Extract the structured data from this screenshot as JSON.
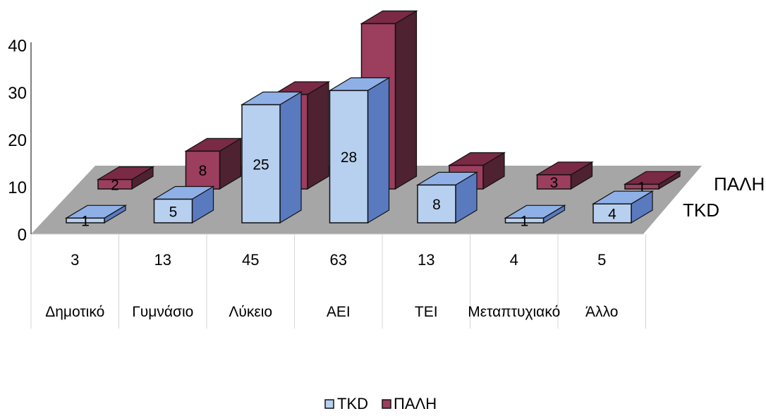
{
  "chart_data": {
    "type": "bar",
    "categories": [
      "Δημοτικό",
      "Γυμνάσιο",
      "Λύκειο",
      "ΑΕΙ",
      "ΤΕΙ",
      "Μεταπτυχιακό",
      "Άλλο"
    ],
    "totals": [
      "3",
      "13",
      "45",
      "63",
      "13",
      "4",
      "5"
    ],
    "series": [
      {
        "name": "TKD",
        "values": [
          1,
          5,
          25,
          28,
          8,
          1,
          4
        ],
        "color": "#b8d0ef",
        "side_color": "#5a7ac0",
        "top_color": "#8fb0e6"
      },
      {
        "name": "ΠΑΛΗ",
        "values": [
          2,
          8,
          20,
          35,
          5,
          3,
          1
        ],
        "color": "#9c3e5e",
        "side_color": "#4e2230",
        "top_color": "#7a2a44"
      }
    ],
    "y_ticks": [
      "0",
      "10",
      "20",
      "30",
      "40"
    ],
    "ylim": [
      0,
      40
    ],
    "floor_color": "#a6a6a6",
    "legend": {
      "position": "bottom",
      "items": [
        "TKD",
        "ΠΑΛΗ"
      ]
    }
  }
}
